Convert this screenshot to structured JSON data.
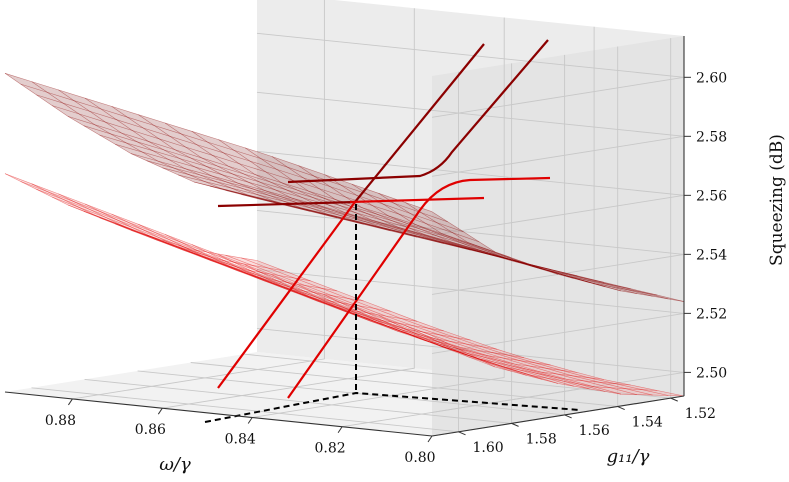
{
  "chart_data": {
    "type": "3d-surface",
    "title": "",
    "xlabel": "ω/γ",
    "ylabel": "g₁₁/γ",
    "zlabel": "Squeezing (dB)",
    "x_ticks": [
      "0.88",
      "0.86",
      "0.84",
      "0.82",
      "0.80"
    ],
    "x_tick_values": [
      0.88,
      0.86,
      0.84,
      0.82,
      0.8
    ],
    "y_ticks": [
      "1.60",
      "1.58",
      "1.56",
      "1.54",
      "1.52"
    ],
    "y_tick_values": [
      1.6,
      1.58,
      1.56,
      1.54,
      1.52
    ],
    "z_ticks": [
      "2.50",
      "2.52",
      "2.54",
      "2.56",
      "2.58",
      "2.60"
    ],
    "z_tick_values": [
      2.5,
      2.52,
      2.54,
      2.56,
      2.58,
      2.6
    ],
    "xlim": [
      0.8,
      0.895
    ],
    "ylim": [
      1.515,
      1.61
    ],
    "zlim": [
      2.492,
      2.614
    ],
    "grid": true,
    "marker_point": {
      "omega": 0.83,
      "g11": 1.57,
      "squeezing": 2.556
    },
    "series": [
      {
        "surface": "upper",
        "color": "#8b0000",
        "fill": "#b07070",
        "values": [
          [
            2.6,
            2.594,
            2.588,
            2.582,
            2.575,
            2.568
          ],
          [
            2.582,
            2.576,
            2.57,
            2.564,
            2.558,
            2.551
          ],
          [
            2.566,
            2.561,
            2.556,
            2.551,
            2.546,
            2.54
          ],
          [
            2.553,
            2.549,
            2.545,
            2.541,
            2.536,
            2.531
          ],
          [
            2.544,
            2.54,
            2.536,
            2.532,
            2.528,
            2.524
          ]
        ]
      },
      {
        "surface": "lower",
        "color": "#e00000",
        "fill": "#f0a0a0",
        "values": [
          [
            2.566,
            2.558,
            2.55,
            2.542,
            2.534,
            2.526
          ],
          [
            2.552,
            2.544,
            2.536,
            2.528,
            2.52,
            2.512
          ],
          [
            2.54,
            2.532,
            2.524,
            2.516,
            2.509,
            2.503
          ],
          [
            2.53,
            2.522,
            2.514,
            2.507,
            2.501,
            2.496
          ],
          [
            2.523,
            2.515,
            2.507,
            2.5,
            2.495,
            2.492
          ]
        ]
      }
    ],
    "surface_x": [
      0.895,
      0.875,
      0.855,
      0.835,
      0.815,
      0.8
    ],
    "surface_y": [
      1.61,
      1.585,
      1.565,
      1.54,
      1.515
    ]
  }
}
